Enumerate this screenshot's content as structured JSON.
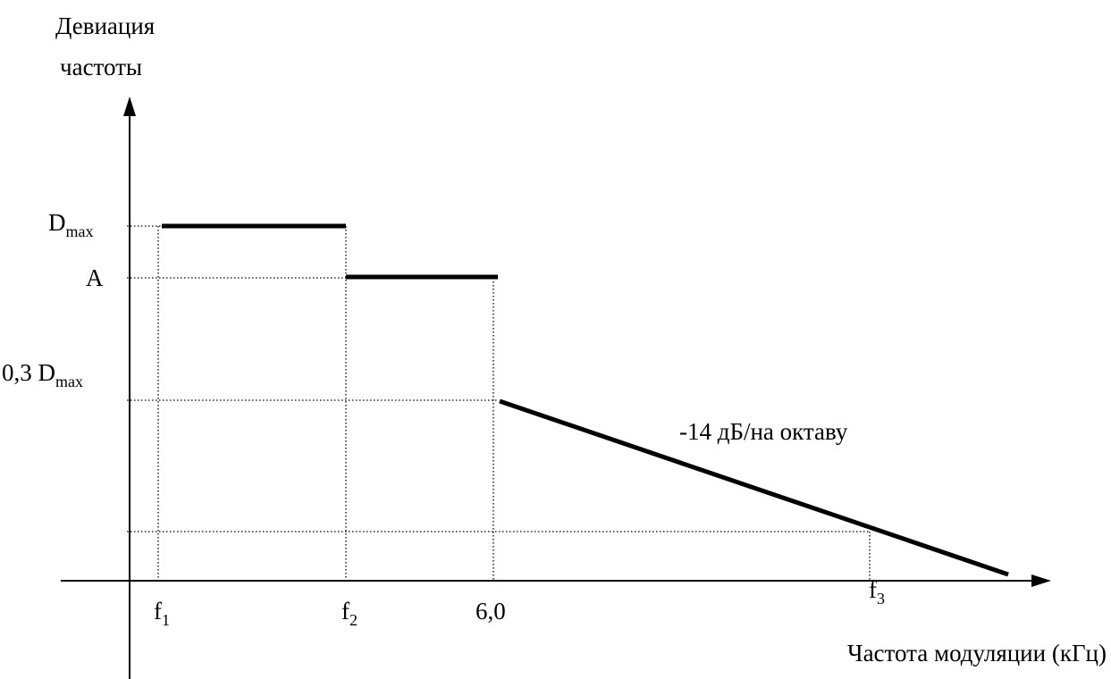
{
  "chart_data": {
    "type": "line",
    "ylabel": [
      "Девиация",
      "частоты"
    ],
    "xlabel": "Частота модуляции (кГц)",
    "x_ticks": [
      {
        "id": "f1",
        "main": "f",
        "sub": "1"
      },
      {
        "id": "f2",
        "main": "f",
        "sub": "2"
      },
      {
        "id": "x6",
        "main": "6,0",
        "sub": ""
      },
      {
        "id": "f3",
        "main": "f",
        "sub": "3"
      }
    ],
    "y_ticks": [
      {
        "id": "dmax",
        "main": "D",
        "sub": "max"
      },
      {
        "id": "a",
        "main": "A",
        "sub": ""
      },
      {
        "id": "d03",
        "main": "0,3 D",
        "sub": "max"
      }
    ],
    "segments": [
      {
        "name": "level-dmax",
        "from": [
          "f1",
          "dmax"
        ],
        "to": [
          "f2",
          "dmax"
        ]
      },
      {
        "name": "level-a",
        "from": [
          "f2",
          "a"
        ],
        "to": [
          "x6",
          "a"
        ]
      },
      {
        "name": "rolloff",
        "from": [
          "x6",
          "d03"
        ],
        "to": [
          "end",
          "zero"
        ]
      }
    ],
    "annotation": "-14 дБ/на октаву",
    "grid": false
  }
}
